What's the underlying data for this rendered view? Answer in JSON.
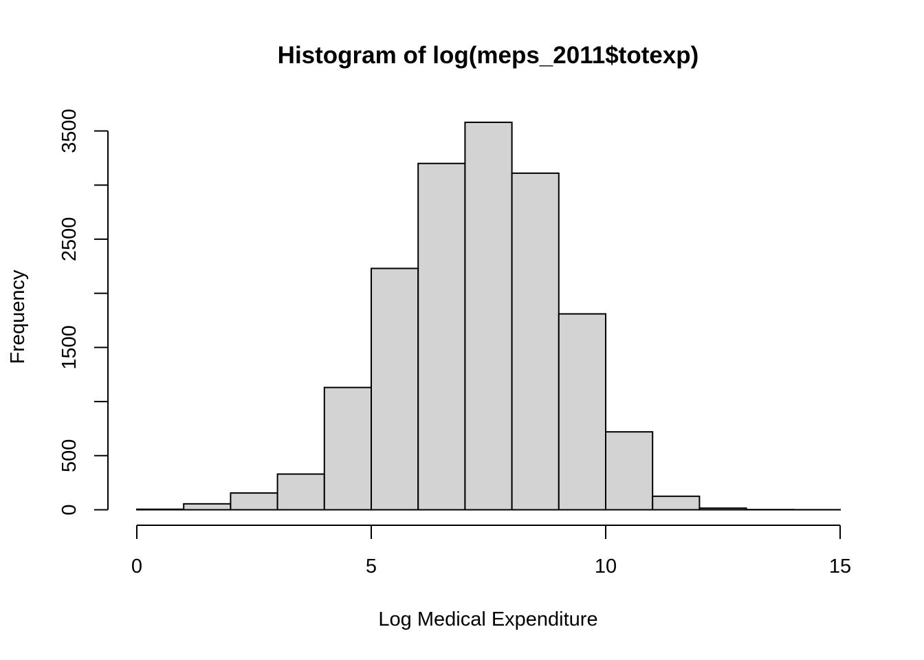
{
  "chart_data": {
    "type": "bar",
    "title": "Histogram of log(meps_2011$totexp)",
    "xlabel": "Log Medical Expenditure",
    "ylabel": "Frequency",
    "bins": [
      {
        "x0": 0,
        "x1": 1,
        "count": 5
      },
      {
        "x0": 1,
        "x1": 2,
        "count": 55
      },
      {
        "x0": 2,
        "x1": 3,
        "count": 155
      },
      {
        "x0": 3,
        "x1": 4,
        "count": 330
      },
      {
        "x0": 4,
        "x1": 5,
        "count": 1130
      },
      {
        "x0": 5,
        "x1": 6,
        "count": 2230
      },
      {
        "x0": 6,
        "x1": 7,
        "count": 3200
      },
      {
        "x0": 7,
        "x1": 8,
        "count": 3580
      },
      {
        "x0": 8,
        "x1": 9,
        "count": 3110
      },
      {
        "x0": 9,
        "x1": 10,
        "count": 1810
      },
      {
        "x0": 10,
        "x1": 11,
        "count": 720
      },
      {
        "x0": 11,
        "x1": 12,
        "count": 125
      },
      {
        "x0": 12,
        "x1": 13,
        "count": 15
      },
      {
        "x0": 13,
        "x1": 14,
        "count": 2
      },
      {
        "x0": 14,
        "x1": 15,
        "count": 1
      }
    ],
    "xlim": [
      0,
      15
    ],
    "ylim": [
      0,
      3500
    ],
    "x_ticks": [
      0,
      5,
      10,
      15
    ],
    "y_ticks": [
      0,
      500,
      1000,
      1500,
      2000,
      2500,
      3000,
      3500
    ],
    "y_tick_labels": [
      "0",
      "500",
      "",
      "1500",
      "",
      "2500",
      "",
      "3500"
    ],
    "bar_color": "#d3d3d3",
    "grid": false
  }
}
